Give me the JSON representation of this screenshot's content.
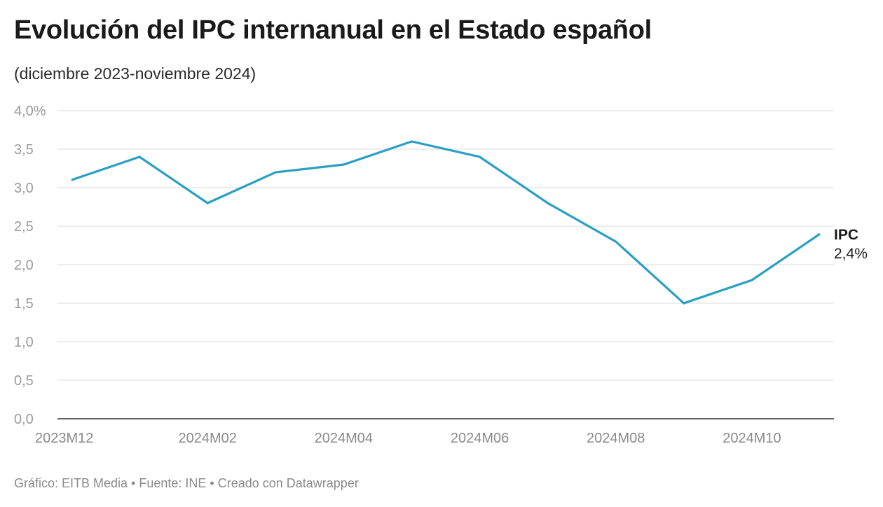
{
  "header": {
    "title": "Evolución del IPC internanual en el Estado español",
    "subtitle": "(diciembre 2023-noviembre 2024)"
  },
  "footer": {
    "text": "Gráfico: EITB Media • Fuente: INE • Creado con Datawrapper"
  },
  "colors": {
    "line": "#2a9fc4",
    "grid": "#e2e2e2",
    "axis": "#333333"
  },
  "chart_data": {
    "type": "line",
    "title": "Evolución del IPC internanual en el Estado español",
    "subtitle": "(diciembre 2023-noviembre 2024)",
    "xlabel": "",
    "ylabel": "",
    "ylim": [
      0,
      4
    ],
    "y_ticks": [
      "0,0",
      "0,5",
      "1,0",
      "1,5",
      "2,0",
      "2,5",
      "3,0",
      "3,5",
      "4,0%"
    ],
    "x": [
      "2023M12",
      "2024M01",
      "2024M02",
      "2024M03",
      "2024M04",
      "2024M05",
      "2024M06",
      "2024M07",
      "2024M08",
      "2024M09",
      "2024M10",
      "2024M11"
    ],
    "x_tick_labels": [
      "2023M12",
      "2024M02",
      "2024M04",
      "2024M06",
      "2024M08",
      "2024M10"
    ],
    "series": [
      {
        "name": "IPC",
        "values": [
          3.1,
          3.4,
          2.8,
          3.2,
          3.3,
          3.6,
          3.4,
          2.8,
          2.3,
          1.5,
          1.8,
          2.4
        ],
        "end_label": "IPC",
        "end_value_label": "2,4%"
      }
    ],
    "grid": true,
    "legend": "none"
  }
}
